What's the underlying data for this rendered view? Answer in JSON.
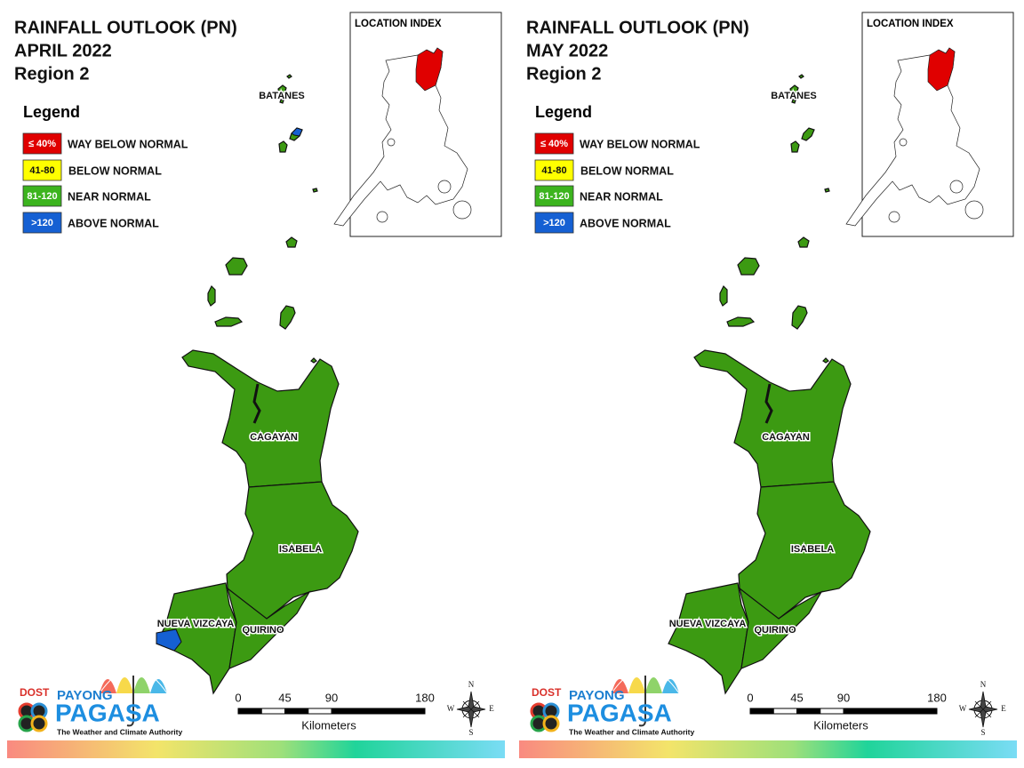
{
  "panels": [
    {
      "title": [
        "RAINFALL OUTLOOK (PN)",
        "APRIL 2022",
        "Region 2"
      ],
      "legend": {
        "title": "Legend",
        "items": [
          {
            "swatch": "≤ 40%",
            "label": "WAY BELOW NORMAL",
            "color": "#e00000"
          },
          {
            "swatch": "41-80",
            "label": "BELOW NORMAL",
            "color": "#ffff00"
          },
          {
            "swatch": "81-120",
            "label": "NEAR NORMAL",
            "color": "#3cb41e"
          },
          {
            "swatch": ">120",
            "label": "ABOVE NORMAL",
            "color": "#1560d3"
          }
        ]
      },
      "location_index": "LOCATION INDEX",
      "provinces": [
        {
          "name": "BATANES",
          "color": "#3c9a12"
        },
        {
          "name": "CAGAYAN",
          "color": "#3c9a12"
        },
        {
          "name": "ISABELA",
          "color": "#3c9a12"
        },
        {
          "name": "NUEVA VIZCAYA",
          "color": "#3c9a12"
        },
        {
          "name": "QUIRINO",
          "color": "#3c9a12"
        }
      ],
      "highlights": [
        {
          "province": "NUEVA VIZCAYA",
          "color": "#1560d3"
        },
        {
          "province": "BATANES",
          "color": "#1560d3"
        }
      ],
      "scale": {
        "ticks": [
          0,
          45,
          90,
          180
        ],
        "unit": "Kilometers"
      },
      "compass": [
        "N",
        "E",
        "S",
        "W"
      ],
      "logo": {
        "agency": "DOST",
        "line1": "PAYONG",
        "line2": "PAGASA",
        "tagline": "The Weather and Climate Authority"
      }
    },
    {
      "title": [
        "RAINFALL OUTLOOK (PN)",
        "MAY 2022",
        "Region 2"
      ],
      "legend": {
        "title": "Legend",
        "items": [
          {
            "swatch": "≤ 40%",
            "label": "WAY BELOW NORMAL",
            "color": "#e00000"
          },
          {
            "swatch": "41-80",
            "label": "BELOW NORMAL",
            "color": "#ffff00"
          },
          {
            "swatch": "81-120",
            "label": "NEAR NORMAL",
            "color": "#3cb41e"
          },
          {
            "swatch": ">120",
            "label": "ABOVE NORMAL",
            "color": "#1560d3"
          }
        ]
      },
      "location_index": "LOCATION INDEX",
      "provinces": [
        {
          "name": "BATANES",
          "color": "#3c9a12"
        },
        {
          "name": "CAGAYAN",
          "color": "#3c9a12"
        },
        {
          "name": "ISABELA",
          "color": "#3c9a12"
        },
        {
          "name": "NUEVA VIZCAYA",
          "color": "#3c9a12"
        },
        {
          "name": "QUIRINO",
          "color": "#3c9a12"
        }
      ],
      "scale": {
        "ticks": [
          0,
          45,
          90,
          180
        ],
        "unit": "Kilometers"
      },
      "compass": [
        "N",
        "E",
        "S",
        "W"
      ],
      "logo": {
        "agency": "DOST",
        "line1": "PAYONG",
        "line2": "PAGASA",
        "tagline": "The Weather and Climate Authority"
      }
    }
  ]
}
